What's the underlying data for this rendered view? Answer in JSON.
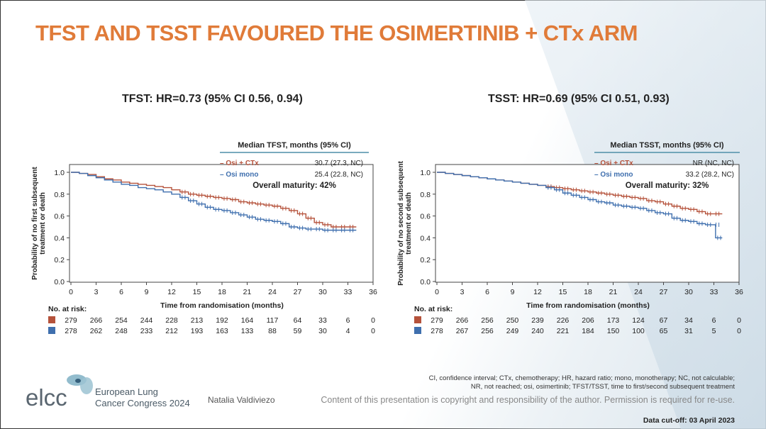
{
  "page": {
    "title": "TFST AND TSST FAVOURED THE OSIMERTINIB + CTx ARM",
    "author": "Natalia Valdiviezo",
    "org_logo_text": "elcc",
    "org_name_line1": "European Lung",
    "org_name_line2": "Cancer Congress 2024",
    "footnote_line1": "CI, confidence interval; CTx, chemotherapy; HR, hazard ratio; mono, monotherapy; NC, not calculable;",
    "footnote_line2": "NR, not reached; osi, osimertinib; TFST/TSST, time to first/second subsequent treatment",
    "copyright": "Content of this presentation is copyright and responsibility of the author. Permission is required for re-use.",
    "data_cutoff": "Data cut-off: 03 April 2023",
    "colors": {
      "title": "#E07B39",
      "osi_ctx": "#B5523B",
      "osi_mono": "#3F6FAE",
      "table_rule": "#4E8FA8"
    }
  },
  "chart_data": [
    {
      "type": "line",
      "title": "TFST: HR=0.73 (95% CI 0.56, 0.94)",
      "xlabel": "Time from randomisation (months)",
      "ylabel_line1": "Probability of no first subsequent",
      "ylabel_line2": "treatment or death",
      "xlim": [
        0,
        36
      ],
      "ylim": [
        0,
        1.0
      ],
      "xticks": [
        0,
        3,
        6,
        9,
        12,
        15,
        18,
        21,
        24,
        27,
        30,
        33,
        36
      ],
      "yticks": [
        "0.0",
        "0.2",
        "0.4",
        "0.6",
        "0.8",
        "1.0"
      ],
      "median_header": "Median TFST, months (95% CI)",
      "maturity": "Overall maturity: 42%",
      "at_risk_label": "No. at risk:",
      "series": [
        {
          "name": "Osi + CTx",
          "legend": "– Osi + CTx",
          "median": "30.7 (27.3, NC)",
          "points": [
            [
              0,
              1.0
            ],
            [
              1,
              0.99
            ],
            [
              2,
              0.98
            ],
            [
              3,
              0.96
            ],
            [
              4,
              0.94
            ],
            [
              5,
              0.93
            ],
            [
              6,
              0.91
            ],
            [
              7,
              0.9
            ],
            [
              8,
              0.89
            ],
            [
              9,
              0.88
            ],
            [
              10,
              0.87
            ],
            [
              11,
              0.86
            ],
            [
              12,
              0.84
            ],
            [
              13,
              0.82
            ],
            [
              14,
              0.8
            ],
            [
              15,
              0.79
            ],
            [
              16,
              0.78
            ],
            [
              17,
              0.77
            ],
            [
              18,
              0.76
            ],
            [
              19,
              0.75
            ],
            [
              20,
              0.73
            ],
            [
              21,
              0.72
            ],
            [
              22,
              0.71
            ],
            [
              23,
              0.7
            ],
            [
              24,
              0.69
            ],
            [
              25,
              0.67
            ],
            [
              26,
              0.65
            ],
            [
              27,
              0.62
            ],
            [
              28,
              0.58
            ],
            [
              29,
              0.54
            ],
            [
              30,
              0.52
            ],
            [
              31,
              0.5
            ],
            [
              32,
              0.5
            ],
            [
              33,
              0.5
            ],
            [
              34,
              0.5
            ]
          ],
          "at_risk": [
            "279",
            "266",
            "254",
            "244",
            "228",
            "213",
            "192",
            "164",
            "117",
            "64",
            "33",
            "6",
            "0"
          ]
        },
        {
          "name": "Osi mono",
          "legend": "– Osi mono",
          "median": "25.4 (22.8, NC)",
          "points": [
            [
              0,
              1.0
            ],
            [
              1,
              0.99
            ],
            [
              2,
              0.97
            ],
            [
              3,
              0.95
            ],
            [
              4,
              0.93
            ],
            [
              5,
              0.91
            ],
            [
              6,
              0.89
            ],
            [
              7,
              0.88
            ],
            [
              8,
              0.86
            ],
            [
              9,
              0.85
            ],
            [
              10,
              0.84
            ],
            [
              11,
              0.82
            ],
            [
              12,
              0.8
            ],
            [
              13,
              0.77
            ],
            [
              14,
              0.74
            ],
            [
              15,
              0.71
            ],
            [
              16,
              0.68
            ],
            [
              17,
              0.66
            ],
            [
              18,
              0.65
            ],
            [
              19,
              0.63
            ],
            [
              20,
              0.61
            ],
            [
              21,
              0.59
            ],
            [
              22,
              0.57
            ],
            [
              23,
              0.56
            ],
            [
              24,
              0.55
            ],
            [
              25,
              0.53
            ],
            [
              26,
              0.5
            ],
            [
              27,
              0.49
            ],
            [
              28,
              0.48
            ],
            [
              29,
              0.48
            ],
            [
              30,
              0.47
            ],
            [
              31,
              0.47
            ],
            [
              32,
              0.47
            ],
            [
              33,
              0.47
            ],
            [
              34,
              0.47
            ]
          ],
          "at_risk": [
            "278",
            "262",
            "248",
            "233",
            "212",
            "193",
            "163",
            "133",
            "88",
            "59",
            "30",
            "4",
            "0"
          ]
        }
      ]
    },
    {
      "type": "line",
      "title": "TSST: HR=0.69 (95% CI 0.51, 0.93)",
      "xlabel": "Time from randomisation (months)",
      "ylabel_line1": "Probability of no second subsequent",
      "ylabel_line2": "treatment or death",
      "xlim": [
        0,
        36
      ],
      "ylim": [
        0,
        1.0
      ],
      "xticks": [
        0,
        3,
        6,
        9,
        12,
        15,
        18,
        21,
        24,
        27,
        30,
        33,
        36
      ],
      "yticks": [
        "0.0",
        "0.2",
        "0.4",
        "0.6",
        "0.8",
        "1.0"
      ],
      "median_header": "Median TSST, months (95% CI)",
      "maturity": "Overall maturity: 32%",
      "at_risk_label": "No. at risk:",
      "series": [
        {
          "name": "Osi + CTx",
          "legend": "– Osi + CTx",
          "median": "NR (NC, NC)",
          "points": [
            [
              0,
              1.0
            ],
            [
              1,
              0.99
            ],
            [
              2,
              0.98
            ],
            [
              3,
              0.97
            ],
            [
              4,
              0.96
            ],
            [
              5,
              0.95
            ],
            [
              6,
              0.94
            ],
            [
              7,
              0.93
            ],
            [
              8,
              0.92
            ],
            [
              9,
              0.91
            ],
            [
              10,
              0.9
            ],
            [
              11,
              0.89
            ],
            [
              12,
              0.88
            ],
            [
              13,
              0.87
            ],
            [
              14,
              0.86
            ],
            [
              15,
              0.85
            ],
            [
              16,
              0.84
            ],
            [
              17,
              0.83
            ],
            [
              18,
              0.82
            ],
            [
              19,
              0.81
            ],
            [
              20,
              0.8
            ],
            [
              21,
              0.79
            ],
            [
              22,
              0.78
            ],
            [
              23,
              0.77
            ],
            [
              24,
              0.76
            ],
            [
              25,
              0.74
            ],
            [
              26,
              0.73
            ],
            [
              27,
              0.71
            ],
            [
              28,
              0.69
            ],
            [
              29,
              0.67
            ],
            [
              30,
              0.66
            ],
            [
              31,
              0.64
            ],
            [
              32,
              0.62
            ],
            [
              33,
              0.62
            ],
            [
              34,
              0.62
            ]
          ],
          "at_risk": [
            "279",
            "266",
            "256",
            "250",
            "239",
            "226",
            "206",
            "173",
            "124",
            "67",
            "34",
            "6",
            "0"
          ]
        },
        {
          "name": "Osi mono",
          "legend": "– Osi mono",
          "median": "33.2 (28.2, NC)",
          "points": [
            [
              0,
              1.0
            ],
            [
              1,
              0.99
            ],
            [
              2,
              0.98
            ],
            [
              3,
              0.97
            ],
            [
              4,
              0.96
            ],
            [
              5,
              0.95
            ],
            [
              6,
              0.94
            ],
            [
              7,
              0.93
            ],
            [
              8,
              0.92
            ],
            [
              9,
              0.91
            ],
            [
              10,
              0.9
            ],
            [
              11,
              0.89
            ],
            [
              12,
              0.88
            ],
            [
              13,
              0.86
            ],
            [
              14,
              0.84
            ],
            [
              15,
              0.81
            ],
            [
              16,
              0.79
            ],
            [
              17,
              0.77
            ],
            [
              18,
              0.75
            ],
            [
              19,
              0.73
            ],
            [
              20,
              0.72
            ],
            [
              21,
              0.7
            ],
            [
              22,
              0.69
            ],
            [
              23,
              0.68
            ],
            [
              24,
              0.67
            ],
            [
              25,
              0.65
            ],
            [
              26,
              0.63
            ],
            [
              27,
              0.62
            ],
            [
              28,
              0.58
            ],
            [
              29,
              0.56
            ],
            [
              30,
              0.55
            ],
            [
              31,
              0.53
            ],
            [
              32,
              0.52
            ],
            [
              33,
              0.52
            ],
            [
              33.2,
              0.4
            ],
            [
              34,
              0.4
            ]
          ],
          "at_risk": [
            "278",
            "267",
            "256",
            "249",
            "240",
            "221",
            "184",
            "150",
            "100",
            "65",
            "31",
            "5",
            "0"
          ]
        }
      ]
    }
  ]
}
